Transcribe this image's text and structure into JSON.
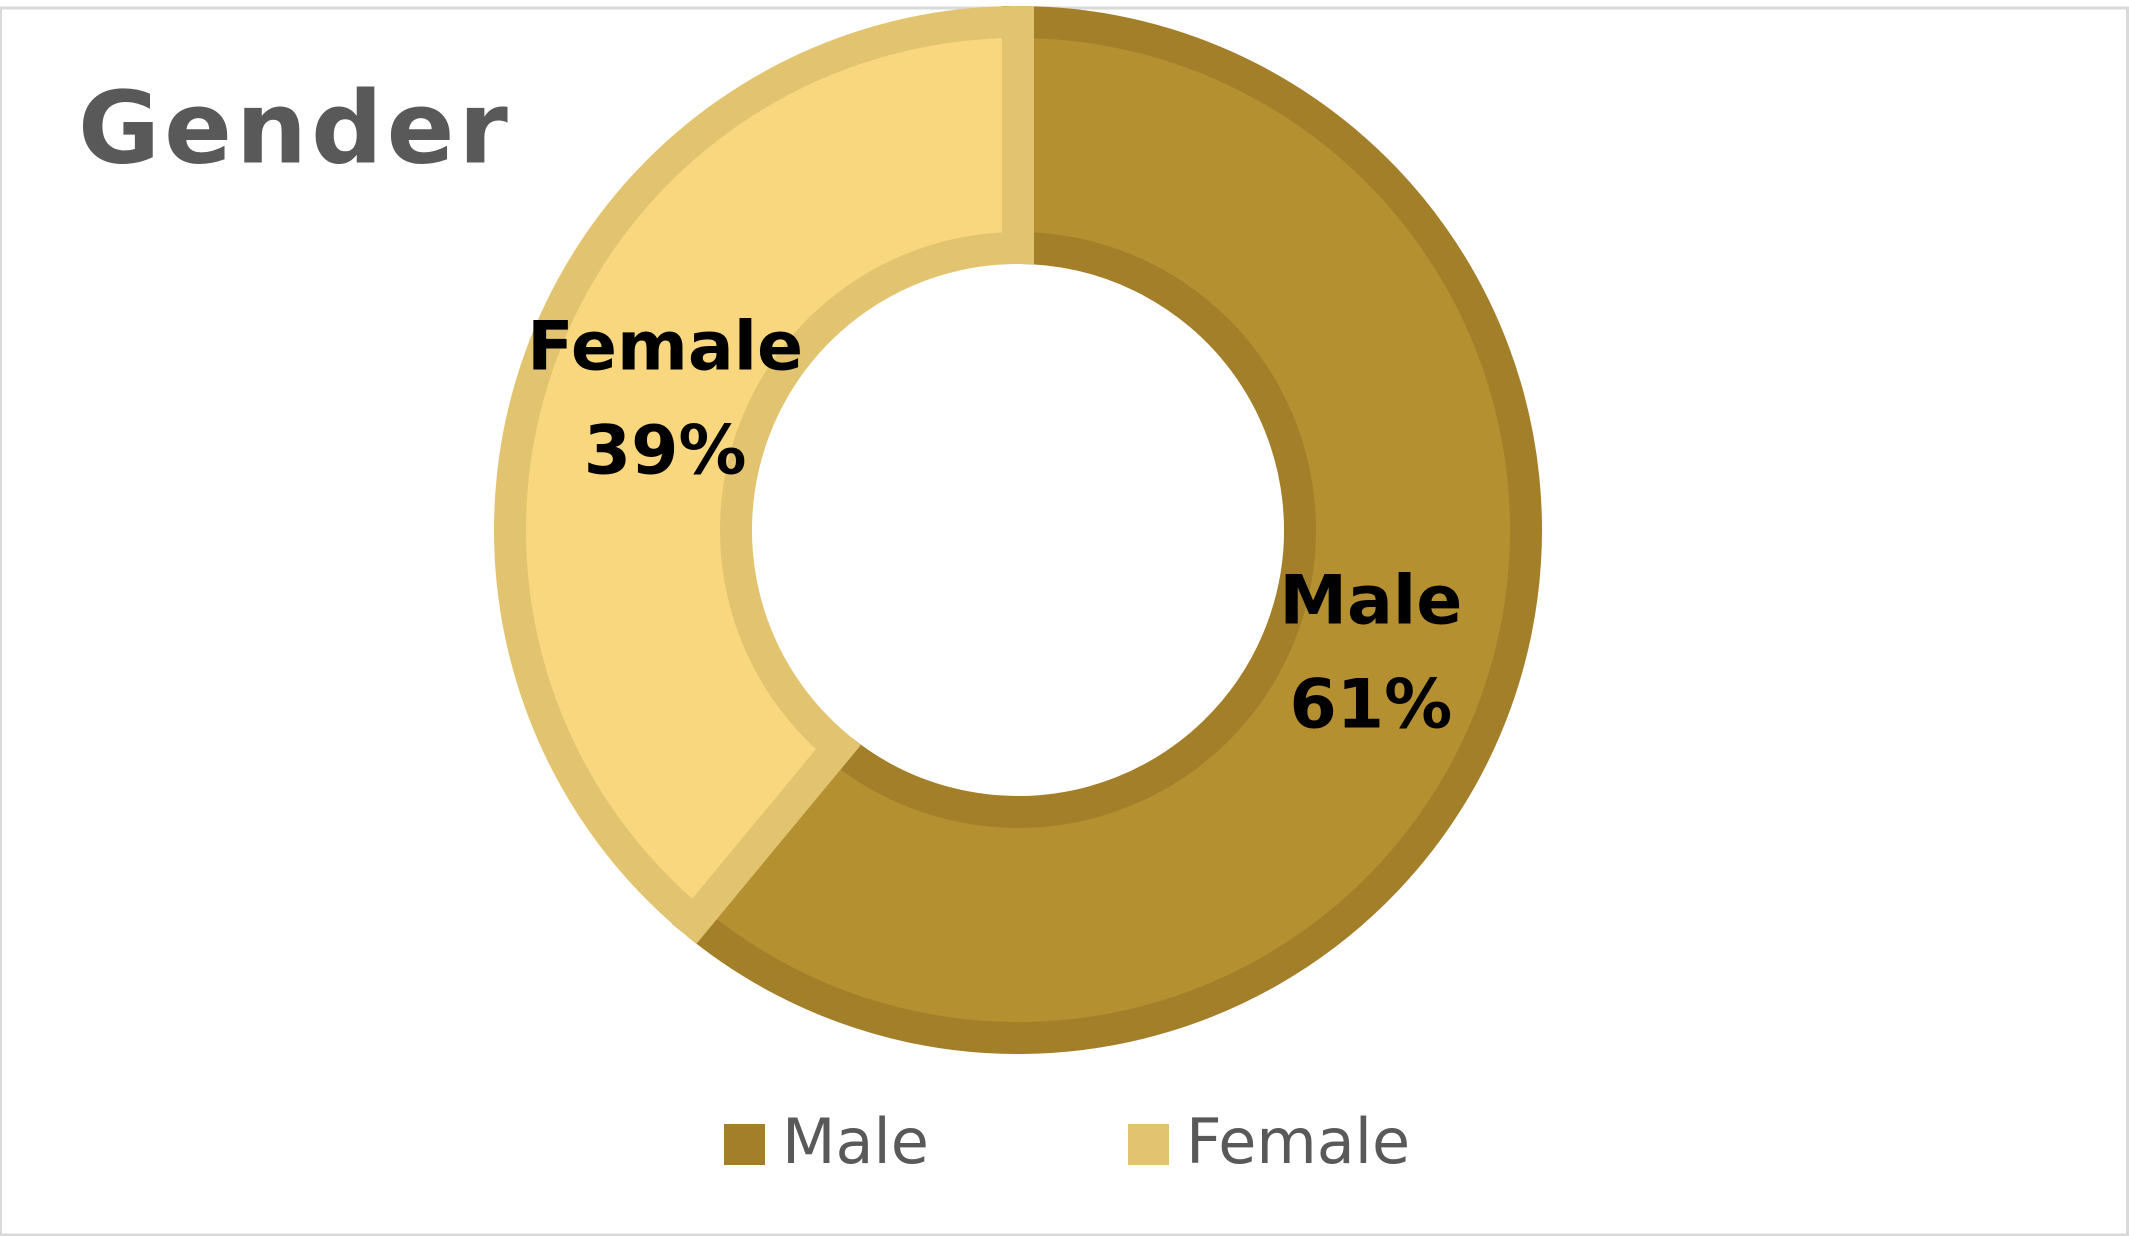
{
  "chart_data": {
    "type": "donut",
    "title": "Gender",
    "categories": [
      "Male",
      "Female"
    ],
    "values": [
      61,
      39
    ],
    "value_labels": [
      "61%",
      "39%"
    ],
    "colors": [
      "#b59030",
      "#f8d77e"
    ],
    "edge_colors": [
      "#a47f2a",
      "#e2c470"
    ],
    "legend": "bottom"
  }
}
